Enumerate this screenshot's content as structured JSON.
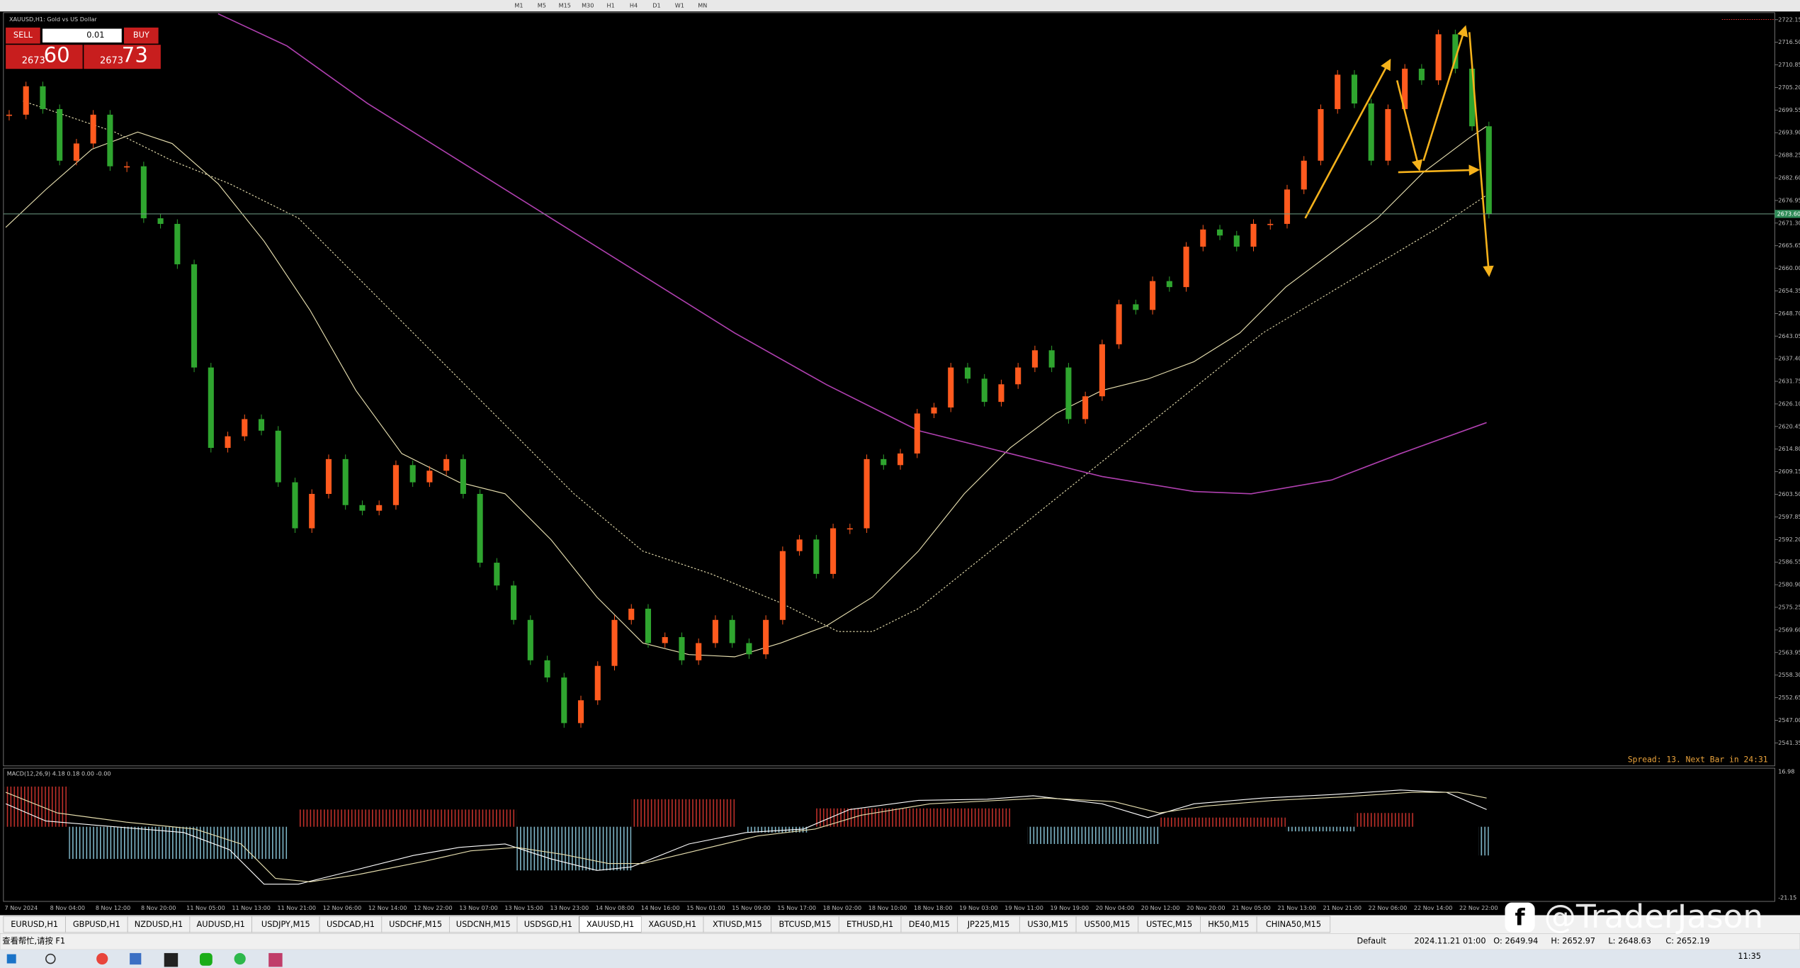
{
  "toolbar": {
    "timeframes": [
      "M1",
      "M5",
      "M15",
      "M30",
      "H1",
      "H4",
      "D1",
      "W1",
      "MN"
    ]
  },
  "chart": {
    "title": "XAUUSD,H1:  Gold vs US Dollar",
    "trade": {
      "sell": "SELL",
      "buy": "BUY",
      "lot": "0.01",
      "sell_small": "2673",
      "sell_big": "60",
      "buy_small": "2673",
      "buy_big": "73"
    },
    "price_axis": {
      "ylim": [
        2535.6,
        2724.2
      ],
      "ticks": [
        {
          "value": 2541.35,
          "label": "2541.35"
        },
        {
          "value": 2547.0,
          "label": "2547.00"
        },
        {
          "value": 2552.65,
          "label": "2552.65"
        },
        {
          "value": 2558.3,
          "label": "2558.30"
        },
        {
          "value": 2563.95,
          "label": "2563.95"
        },
        {
          "value": 2569.6,
          "label": "2569.60"
        },
        {
          "value": 2575.25,
          "label": "2575.25"
        },
        {
          "value": 2580.9,
          "label": "2580.90"
        },
        {
          "value": 2586.55,
          "label": "2586.55"
        },
        {
          "value": 2592.2,
          "label": "2592.20"
        },
        {
          "value": 2597.85,
          "label": "2597.85"
        },
        {
          "value": 2603.5,
          "label": "2603.50"
        },
        {
          "value": 2609.15,
          "label": "2609.15"
        },
        {
          "value": 2614.8,
          "label": "2614.80"
        },
        {
          "value": 2620.45,
          "label": "2620.45"
        },
        {
          "value": 2626.1,
          "label": "2626.10"
        },
        {
          "value": 2631.75,
          "label": "2631.75"
        },
        {
          "value": 2637.4,
          "label": "2637.40"
        },
        {
          "value": 2643.05,
          "label": "2643.05"
        },
        {
          "value": 2648.7,
          "label": "2648.70"
        },
        {
          "value": 2654.35,
          "label": "2654.35"
        },
        {
          "value": 2660.0,
          "label": "2660.00"
        },
        {
          "value": 2665.65,
          "label": "2665.65"
        },
        {
          "value": 2671.3,
          "label": "2671.30"
        },
        {
          "value": 2676.95,
          "label": "2676.95"
        },
        {
          "value": 2682.6,
          "label": "2682.60"
        },
        {
          "value": 2688.25,
          "label": "2688.25"
        },
        {
          "value": 2693.9,
          "label": "2693.90"
        },
        {
          "value": 2699.55,
          "label": "2699.55"
        },
        {
          "value": 2705.2,
          "label": "2705.20"
        },
        {
          "value": 2710.85,
          "label": "2710.85"
        },
        {
          "value": 2716.5,
          "label": "2716.50"
        },
        {
          "value": 2722.15,
          "label": "2722.15"
        }
      ]
    },
    "current_price": {
      "value": 2673.6,
      "label": "2673.60"
    },
    "closes": [
      2698.4,
      2705.5,
      2699.8,
      2686.9,
      2691.2,
      2698.4,
      2685.5,
      2685.5,
      2672.5,
      2671.1,
      2661.0,
      2635.2,
      2615.1,
      2618.0,
      2622.3,
      2619.4,
      2606.5,
      2595.0,
      2603.6,
      2612.3,
      2600.8,
      2599.4,
      2600.8,
      2610.8,
      2606.5,
      2609.4,
      2612.3,
      2603.6,
      2586.4,
      2580.7,
      2572.1,
      2562.0,
      2557.7,
      2546.3,
      2552.0,
      2560.6,
      2572.1,
      2574.9,
      2566.3,
      2567.8,
      2562.0,
      2566.3,
      2572.1,
      2566.3,
      2563.5,
      2572.1,
      2589.3,
      2592.2,
      2583.6,
      2595.0,
      2595.0,
      2612.3,
      2610.8,
      2613.7,
      2623.7,
      2625.2,
      2635.2,
      2632.4,
      2626.6,
      2631.0,
      2635.2,
      2639.5,
      2635.2,
      2622.3,
      2628.0,
      2641.0,
      2651.0,
      2649.6,
      2656.8,
      2655.3,
      2665.4,
      2669.7,
      2668.2,
      2665.4,
      2671.1,
      2671.1,
      2679.7,
      2686.9,
      2699.8,
      2708.4,
      2701.2,
      2686.9,
      2699.8,
      2709.9,
      2707.0,
      2718.5,
      2709.9,
      2695.5,
      2673.6
    ],
    "spread": "Spread: 13.  Next Bar in 24:31",
    "macd": {
      "label": "MACD(12,26,9) 4.18 0.18 0.00 -0.00",
      "top": "16.98",
      "bottom": "-21.15"
    },
    "time_labels": [
      "7 Nov 2024",
      "8 Nov 04:00",
      "8 Nov 12:00",
      "8 Nov 20:00",
      "11 Nov 05:00",
      "11 Nov 13:00",
      "11 Nov 21:00",
      "12 Nov 06:00",
      "12 Nov 14:00",
      "12 Nov 22:00",
      "13 Nov 07:00",
      "13 Nov 15:00",
      "13 Nov 23:00",
      "14 Nov 08:00",
      "14 Nov 16:00",
      "15 Nov 01:00",
      "15 Nov 09:00",
      "15 Nov 17:00",
      "18 Nov 02:00",
      "18 Nov 10:00",
      "18 Nov 18:00",
      "19 Nov 03:00",
      "19 Nov 11:00",
      "19 Nov 19:00",
      "20 Nov 04:00",
      "20 Nov 12:00",
      "20 Nov 20:00",
      "21 Nov 05:00",
      "21 Nov 13:00",
      "21 Nov 21:00",
      "22 Nov 06:00",
      "22 Nov 14:00",
      "22 Nov 22:00"
    ]
  },
  "tabs": {
    "items": [
      "EURUSD,H1",
      "GBPUSD,H1",
      "NZDUSD,H1",
      "AUDUSD,H1",
      "USDJPY,M15",
      "USDCAD,H1",
      "USDCHF,M15",
      "USDCNH,M15",
      "USDSGD,H1",
      "XAUUSD,H1",
      "XAGUSD,H1",
      "XTIUSD,M15",
      "BTCUSD,M15",
      "ETHUSD,H1",
      "DE40,M15",
      "JP225,M15",
      "US30,M15",
      "US500,M15",
      "USTEC,M15",
      "HK50,M15",
      "CHINA50,M15"
    ],
    "active": 9
  },
  "status": {
    "help": "查看帮忙,请按 F1",
    "profile": "Default",
    "time": "2024.11.21 01:00",
    "open": "O: 2649.94",
    "high": "H: 2652.97",
    "low": "L: 2648.63",
    "close": "C: 2652.19"
  },
  "watermark": "@TraderJason",
  "taskbar": {
    "clock": "11:35"
  }
}
